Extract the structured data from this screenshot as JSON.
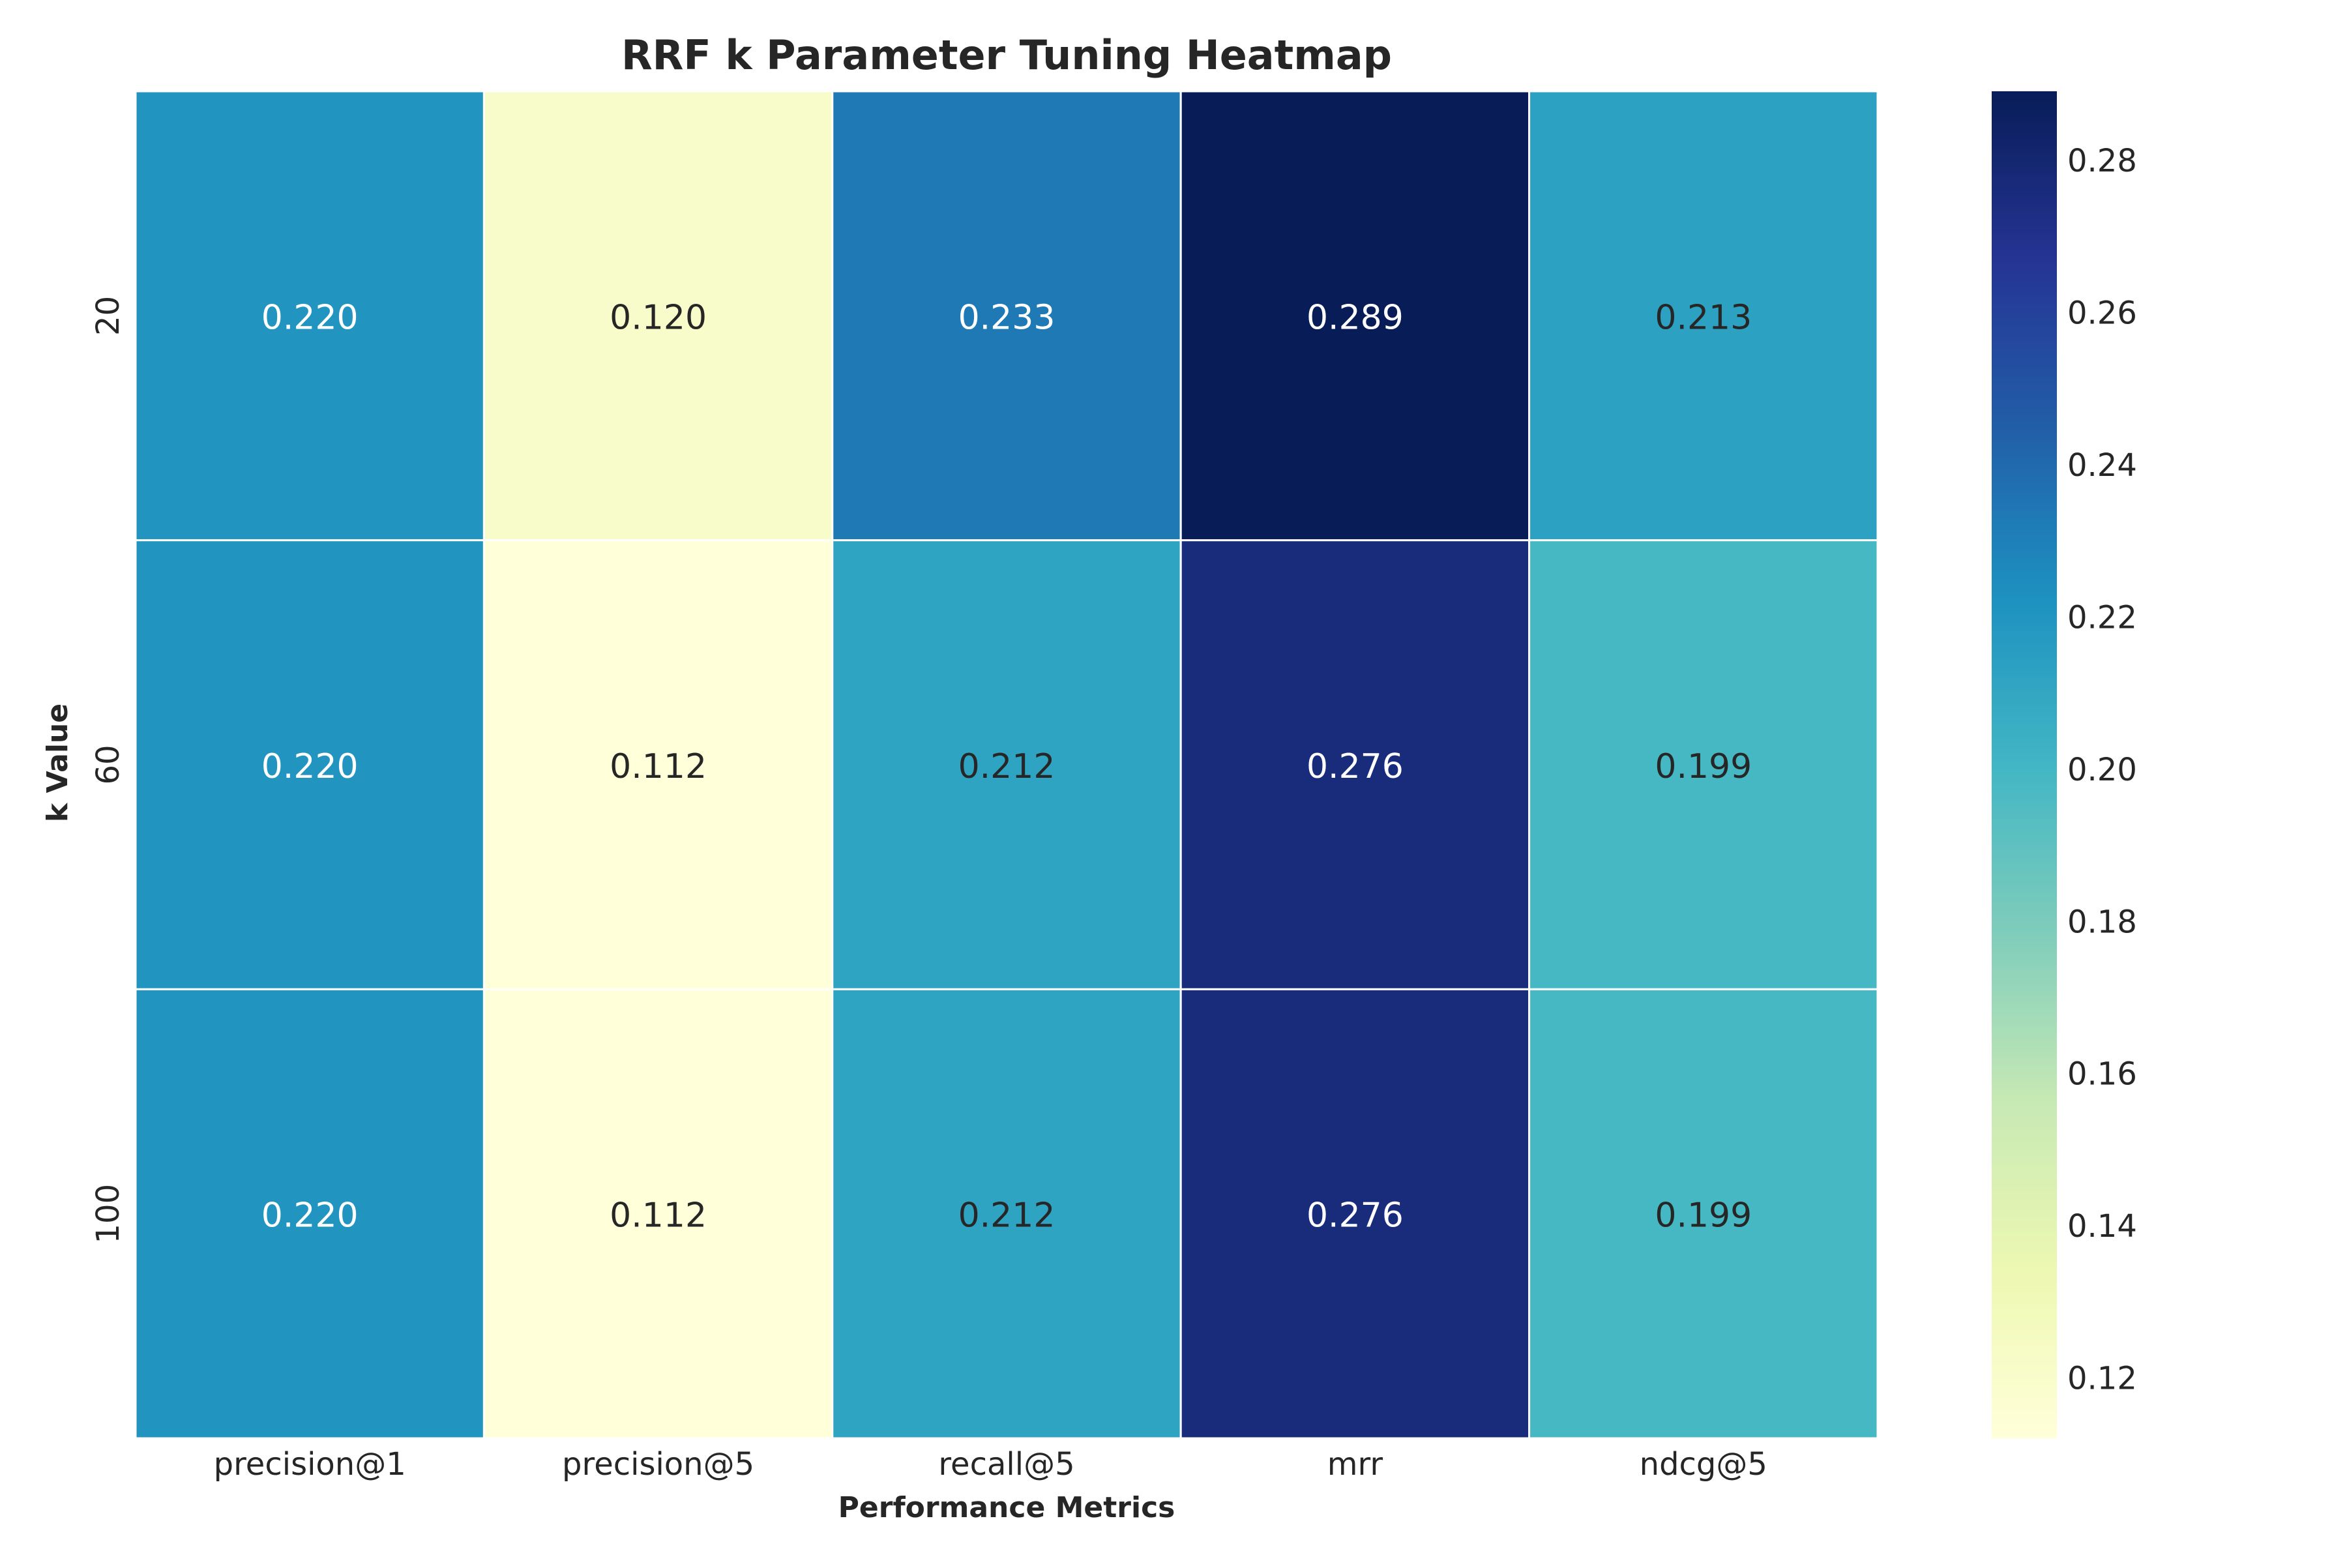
{
  "chart_data": {
    "type": "heatmap",
    "title": "RRF k Parameter Tuning Heatmap",
    "xlabel": "Performance Metrics",
    "ylabel": "k Value",
    "x_categories": [
      "precision@1",
      "precision@5",
      "recall@5",
      "mrr",
      "ndcg@5"
    ],
    "y_categories": [
      "20",
      "60",
      "100"
    ],
    "values": [
      [
        0.22,
        0.12,
        0.233,
        0.289,
        0.213
      ],
      [
        0.22,
        0.112,
        0.212,
        0.276,
        0.199
      ],
      [
        0.22,
        0.112,
        0.212,
        0.276,
        0.199
      ]
    ],
    "cell_labels": [
      [
        "0.220",
        "0.120",
        "0.233",
        "0.289",
        "0.213"
      ],
      [
        "0.220",
        "0.112",
        "0.212",
        "0.276",
        "0.199"
      ],
      [
        "0.220",
        "0.112",
        "0.212",
        "0.276",
        "0.199"
      ]
    ],
    "colorbar": {
      "min": 0.112,
      "max": 0.289,
      "ticks": [
        "0.12",
        "0.14",
        "0.16",
        "0.18",
        "0.20",
        "0.22",
        "0.24",
        "0.26",
        "0.28"
      ],
      "colormap": "YlGnBu"
    }
  }
}
